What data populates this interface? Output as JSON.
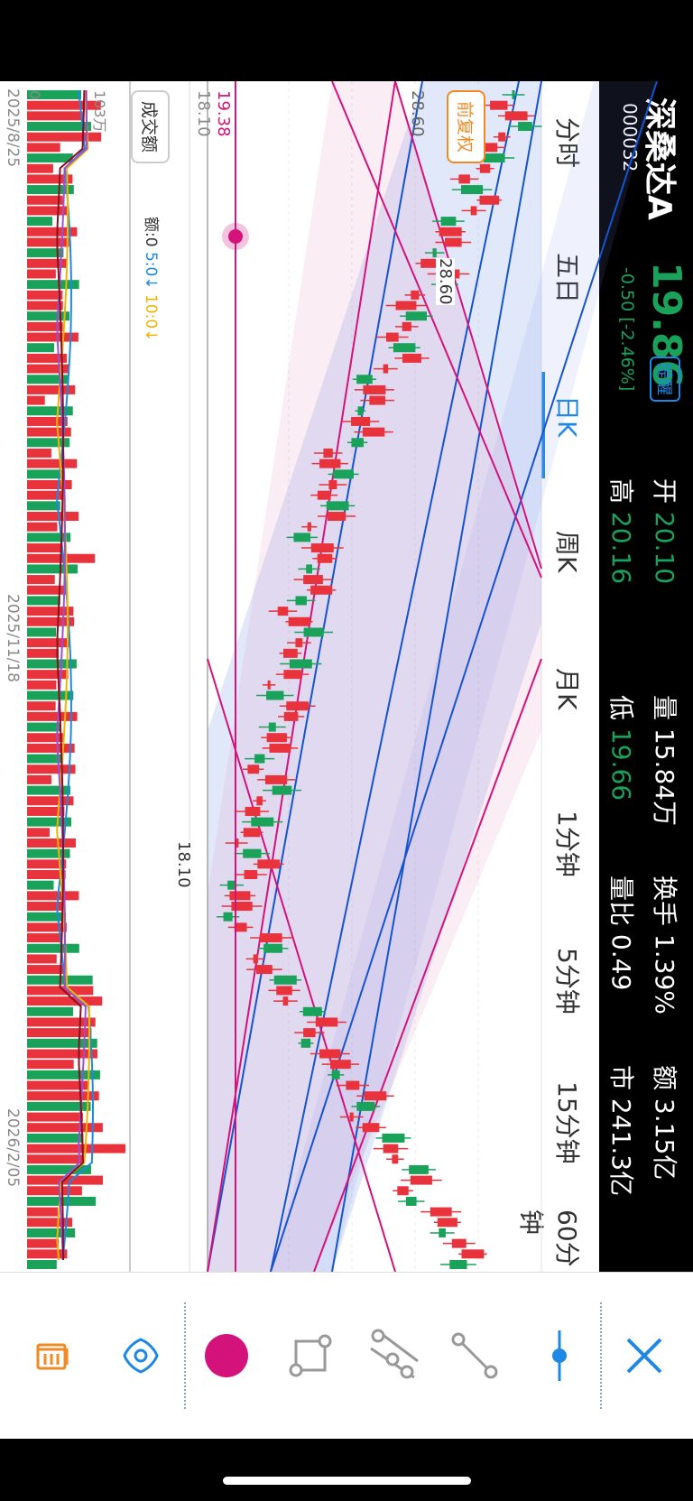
{
  "stock": {
    "name": "深桑达A",
    "code": "000032",
    "price": "19.86",
    "change": "-0.50 [-2.46%]",
    "alert_label": "提醒",
    "stats": {
      "open_label": "开",
      "open": "20.10",
      "high_label": "高",
      "high": "20.16",
      "volume_label": "量",
      "volume": "15.84万",
      "low_label": "低",
      "low": "19.66",
      "turnover_label": "换手",
      "turnover": "1.39%",
      "vol_ratio_label": "量比",
      "vol_ratio": "0.49",
      "amount_label": "额",
      "amount": "3.15亿",
      "mcap_label": "市",
      "mcap": "241.3亿"
    }
  },
  "tabs": [
    "分时",
    "五日",
    "日K",
    "周K",
    "月K",
    "1分钟",
    "5分钟",
    "15分钟",
    "60分钟"
  ],
  "active_tab": "日K",
  "adjust_label": "前复权",
  "price_labels": {
    "high_mark": "28.60",
    "low_mark": "18.10",
    "crosshair": "19.38",
    "left_axis": "18.10"
  },
  "volume_panel": {
    "selector": "成交额",
    "ma_base": "额:0",
    "ma5": "5:0↓",
    "ma10": "10:0↓",
    "axis_top": "103万",
    "axis_zero": "0"
  },
  "dates": [
    "2025/8/25",
    "2025/11/18",
    "2026/2/05"
  ],
  "colors": {
    "up": "#e8323c",
    "down": "#1aa25a",
    "blue_channel": "#1553cf",
    "magenta_channel": "#d4127b",
    "accent": "#1e88e5",
    "orange": "#f08a24"
  },
  "toolbar_icons": [
    "close-icon",
    "line-style-icon",
    "segment-icon",
    "parallel-channel-icon",
    "rectangle-icon",
    "color-swatch-icon",
    "visibility-icon",
    "delete-icon"
  ],
  "chart_data": {
    "type": "candlestick",
    "price_range": [
      18.1,
      28.6
    ],
    "dates": [
      "2025/8/25",
      "2025/11/18",
      "2026/2/05"
    ],
    "volume_axis": {
      "top": "103万",
      "zero": "0"
    }
  }
}
